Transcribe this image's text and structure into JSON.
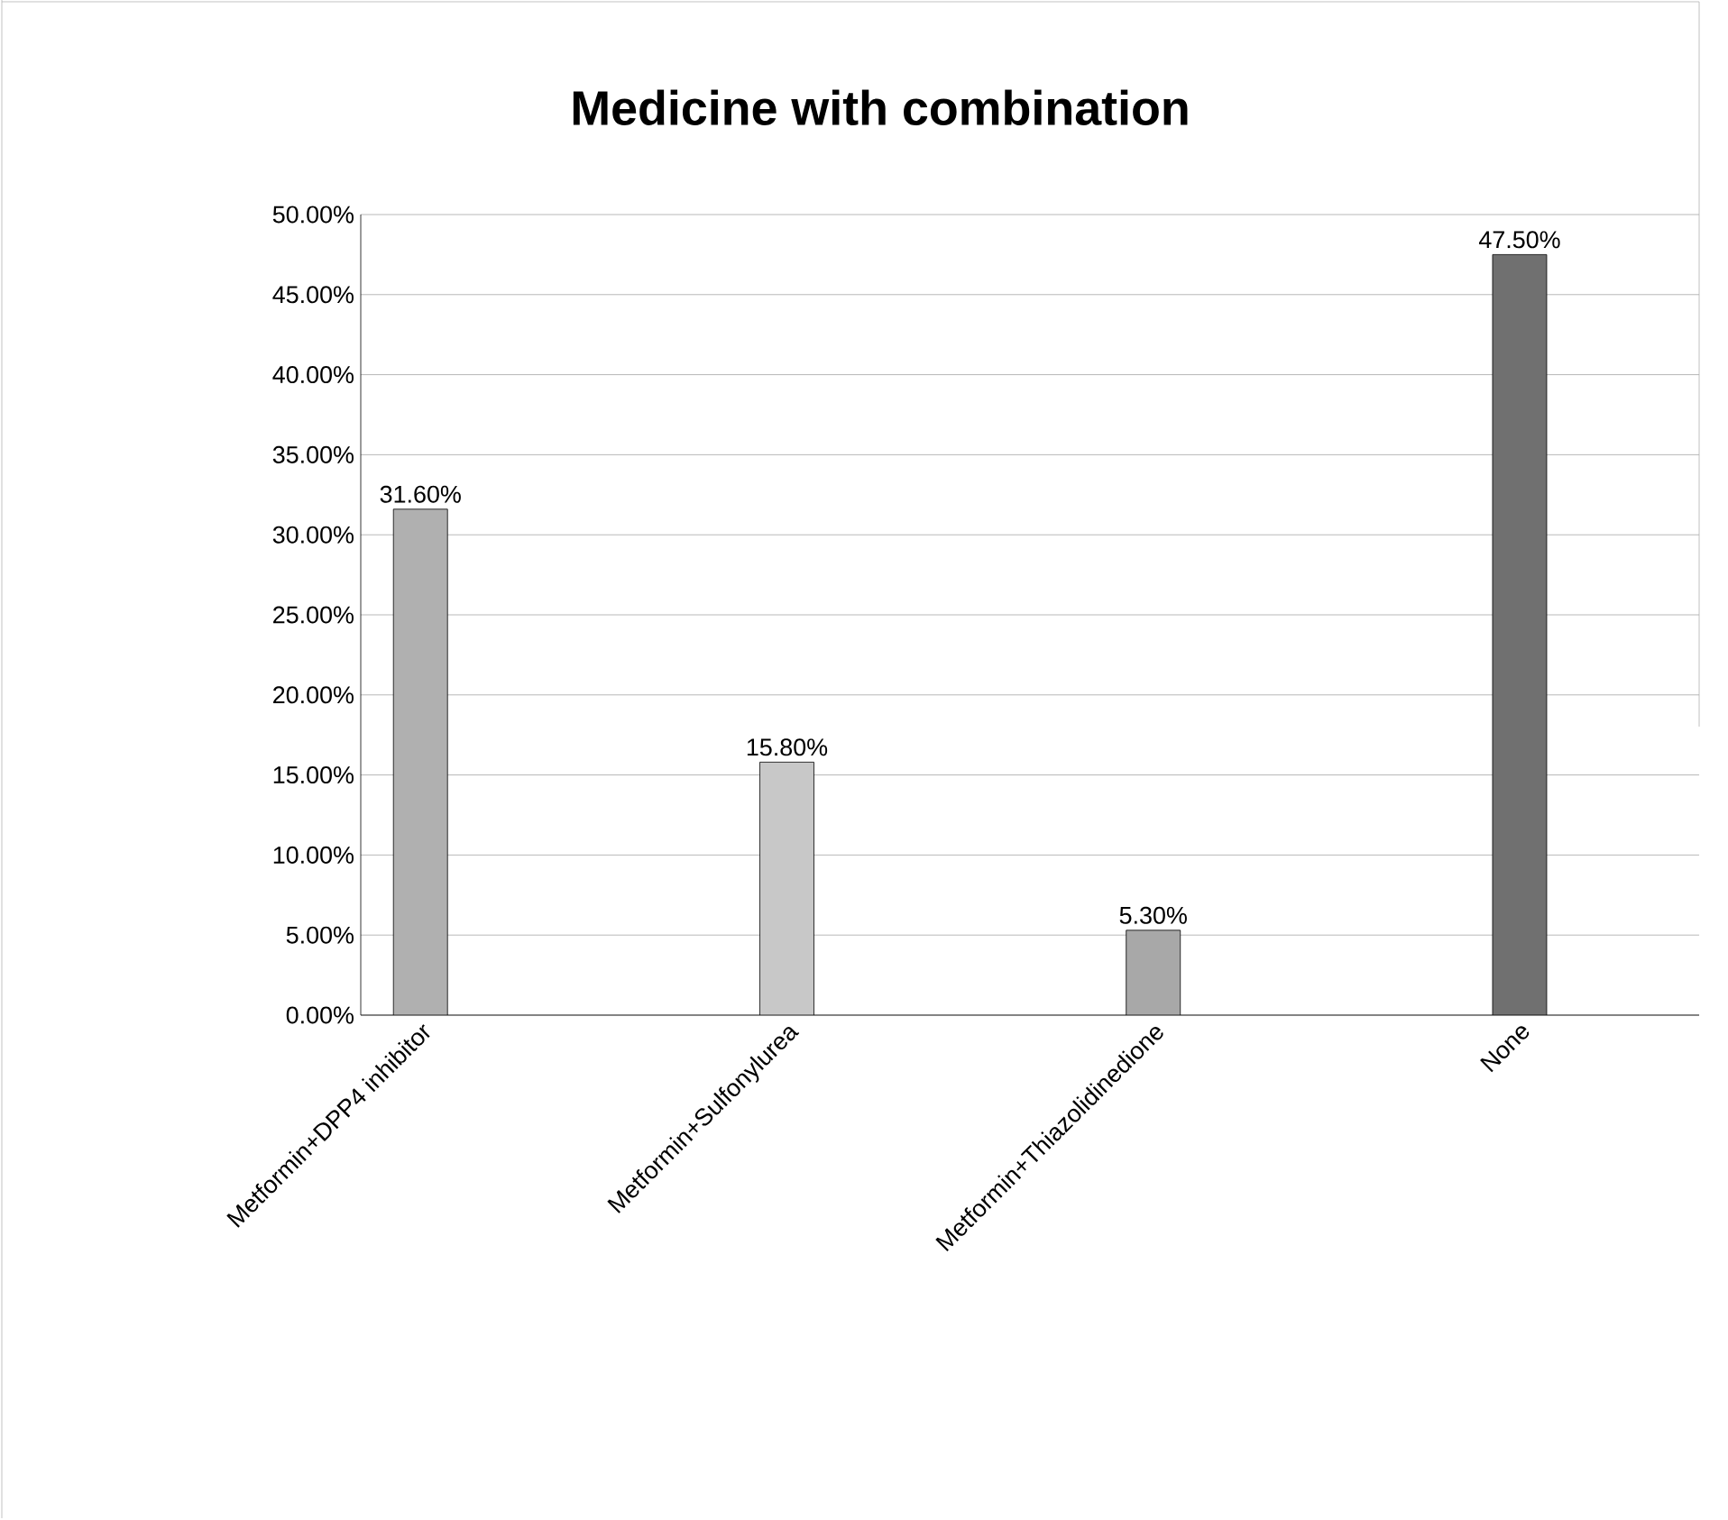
{
  "chart_data": {
    "type": "bar",
    "title": "Medicine with combination",
    "categories": [
      "Metformin+DPP4 inhibitor",
      "Metformin+Sulfonylurea",
      "Metformin+Thiazolidinedione",
      "None"
    ],
    "values": [
      31.6,
      15.8,
      5.3,
      47.5
    ],
    "value_labels": [
      "31.60%",
      "15.80%",
      "5.30%",
      "47.50%"
    ],
    "colors": [
      "#b0b0b0",
      "#c8c8c8",
      "#a8a8a8",
      "#707070"
    ],
    "ylim": [
      0,
      50
    ],
    "yticks": [
      {
        "value": 0,
        "label": "0.00%"
      },
      {
        "value": 5,
        "label": "5.00%"
      },
      {
        "value": 10,
        "label": "10.00%"
      },
      {
        "value": 15,
        "label": "15.00%"
      },
      {
        "value": 20,
        "label": "20.00%"
      },
      {
        "value": 25,
        "label": "25.00%"
      },
      {
        "value": 30,
        "label": "30.00%"
      },
      {
        "value": 35,
        "label": "35.00%"
      },
      {
        "value": 40,
        "label": "40.00%"
      },
      {
        "value": 45,
        "label": "45.00%"
      },
      {
        "value": 50,
        "label": "50.00%"
      }
    ],
    "grid": "y"
  }
}
